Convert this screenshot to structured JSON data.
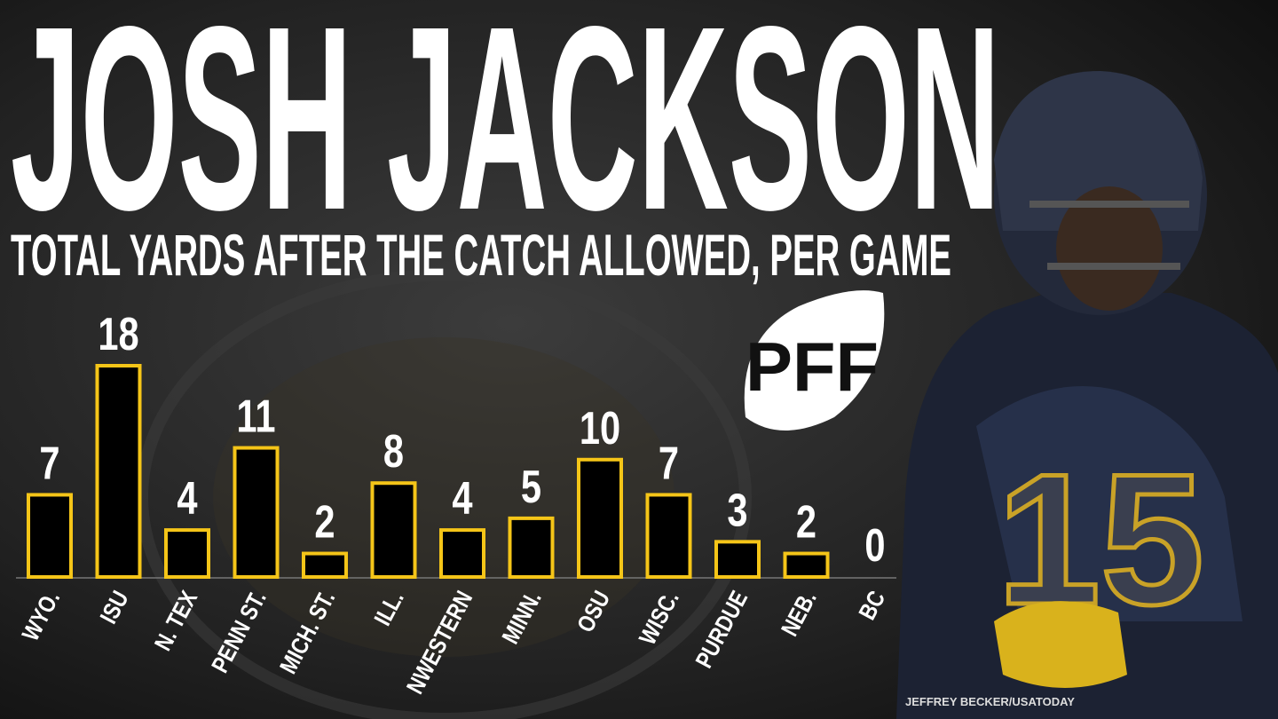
{
  "chart_data": {
    "type": "bar",
    "title": "JOSH JACKSON",
    "subtitle": "TOTAL YARDS AFTER THE CATCH ALLOWED, PER GAME",
    "categories": [
      "WYO.",
      "ISU",
      "N. TEX",
      "PENN ST.",
      "MICH. ST.",
      "ILL.",
      "NWESTERN",
      "MINN.",
      "OSU",
      "WISC.",
      "PURDUE",
      "NEB.",
      "BC"
    ],
    "values": [
      7,
      18,
      4,
      11,
      2,
      8,
      4,
      5,
      10,
      7,
      3,
      2,
      0
    ],
    "color": "#000000",
    "edge_color": "#f5c518",
    "logo": "PFF",
    "credit": "JEFFREY BECKER/USATODAY"
  }
}
